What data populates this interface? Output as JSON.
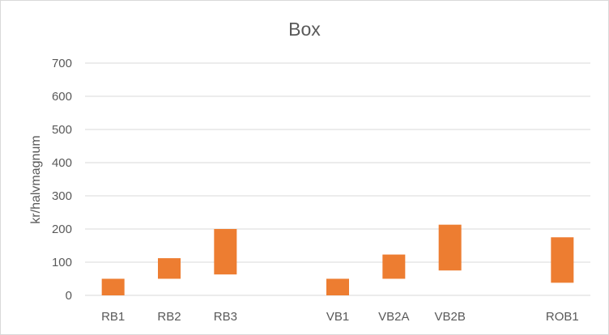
{
  "chart_data": {
    "type": "bar",
    "subtype": "floating-range",
    "title": "Box",
    "xlabel": "",
    "ylabel": "kr/halvmagnum",
    "ylim": [
      0,
      700
    ],
    "yticks": [
      0,
      100,
      200,
      300,
      400,
      500,
      600,
      700
    ],
    "grid": true,
    "legend": "none",
    "bar_color": "#ED7D31",
    "categories": [
      "RB1",
      "RB2",
      "RB3",
      "",
      "VB1",
      "VB2A",
      "VB2B",
      "",
      "ROB1"
    ],
    "ranges": [
      [
        0,
        50
      ],
      [
        50,
        112
      ],
      [
        63,
        200
      ],
      null,
      [
        0,
        50
      ],
      [
        50,
        123
      ],
      [
        75,
        213
      ],
      null,
      [
        38,
        175
      ]
    ]
  }
}
